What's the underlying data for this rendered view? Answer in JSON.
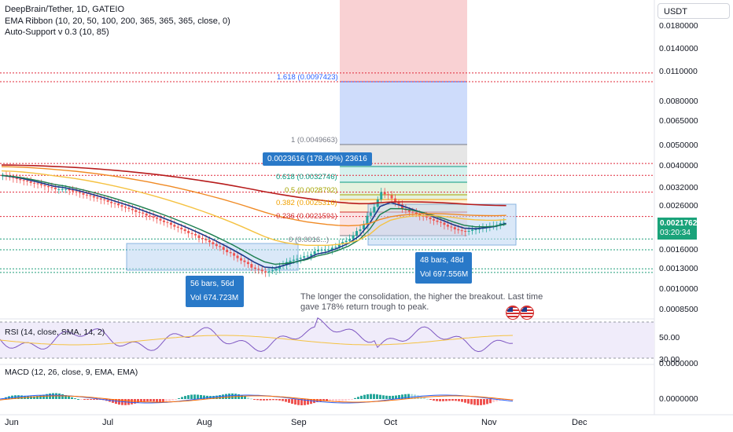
{
  "header": {
    "symbol_line": "DeepBrain/Tether, 1D, GATEIO",
    "indicator1": "EMA Ribbon (10, 20, 50, 100, 200, 365, 365, 365, close, 0)",
    "indicator2": "Auto-Support v 0.3 (10, 85)"
  },
  "currency_button": "USDT",
  "price_axis": [
    "0.0180000",
    "0.0140000",
    "0.0110000",
    "0.0080000",
    "0.0065000",
    "0.0050000",
    "0.0040000",
    "0.0032000",
    "0.0026000",
    "0.0016000",
    "0.0013000",
    "0.0010000",
    "0.0008500"
  ],
  "last_price": {
    "value": "0.0021762",
    "countdown": "03:20:34",
    "color": "#1aa37a"
  },
  "x_axis": [
    "Jun",
    "Jul",
    "Aug",
    "Sep",
    "Oct",
    "Nov",
    "Dec"
  ],
  "fib": {
    "l1618": "1.618 (0.0097423)",
    "l1": "1 (0.0049663)",
    "l618": "0.618 (0.0032746)",
    "l5": "0.5 (0.0028792)",
    "l382": "0.382 (0.0025316)",
    "l236": "0.236 (0.0021591)",
    "l0": "0 (0.0016...)"
  },
  "measure_top": "0.0023616 (178.49%) 23616",
  "range1": {
    "bars": "56 bars, 56d",
    "vol": "Vol 674.723M"
  },
  "range2": {
    "bars": "48 bars, 48d",
    "vol": "Vol 697.556M"
  },
  "note": "The longer the consolidation, the higher the breakout. Last time gave 178% return trough to peak.",
  "rsi": {
    "label": "RSI (14, close, SMA, 14, 2)",
    "ticks": [
      "50.00",
      "30.00"
    ]
  },
  "macd": {
    "label": "MACD (12, 26, close, 9, EMA, EMA)",
    "ticks": [
      "0.0000000",
      "0.0000000"
    ]
  },
  "colors": {
    "up": "#26a69a",
    "down": "#ef5350",
    "accent": "#2962ff"
  },
  "chart_data": {
    "type": "candlestick",
    "title": "DeepBrain/Tether, 1D, GATEIO",
    "y_scale": "log",
    "ylim": [
      0.00075,
      0.022
    ],
    "closes": [
      0.0036,
      0.0035,
      0.0034,
      0.0033,
      0.0032,
      0.0031,
      0.0031,
      0.003,
      0.0029,
      0.0028,
      0.0027,
      0.0026,
      0.0025,
      0.0024,
      0.0023,
      0.0022,
      0.0021,
      0.002,
      0.0019,
      0.0018,
      0.0017,
      0.0016,
      0.0015,
      0.0014,
      0.0013,
      0.00125,
      0.0013,
      0.0014,
      0.00145,
      0.0015,
      0.0016,
      0.0016,
      0.0017,
      0.0018,
      0.002,
      0.0024,
      0.003,
      0.0028,
      0.0025,
      0.0024,
      0.0023,
      0.0022,
      0.0021,
      0.002,
      0.00195,
      0.002,
      0.00205,
      0.0021,
      0.0022
    ],
    "support_lines": [
      0.011,
      0.01,
      0.0041,
      0.0036,
      0.003,
      0.0023,
      0.0018,
      0.0016,
      0.0013,
      0.00125
    ]
  }
}
